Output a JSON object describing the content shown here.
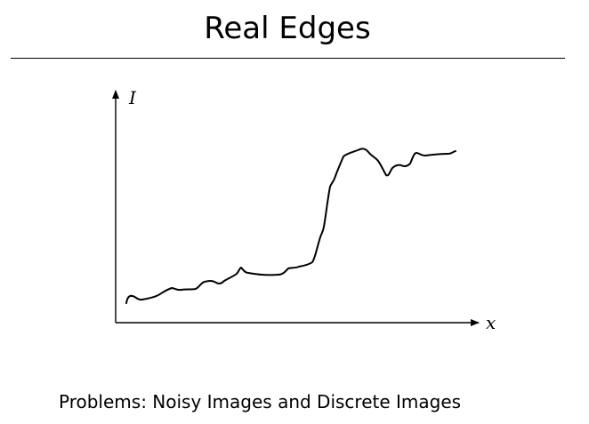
{
  "slide": {
    "title": "Real Edges",
    "caption": "Problems: Noisy Images and Discrete Images"
  },
  "diagram": {
    "y_axis_label": "I",
    "x_axis_label": "x",
    "curve_description": "noisy intensity profile with a step edge"
  }
}
